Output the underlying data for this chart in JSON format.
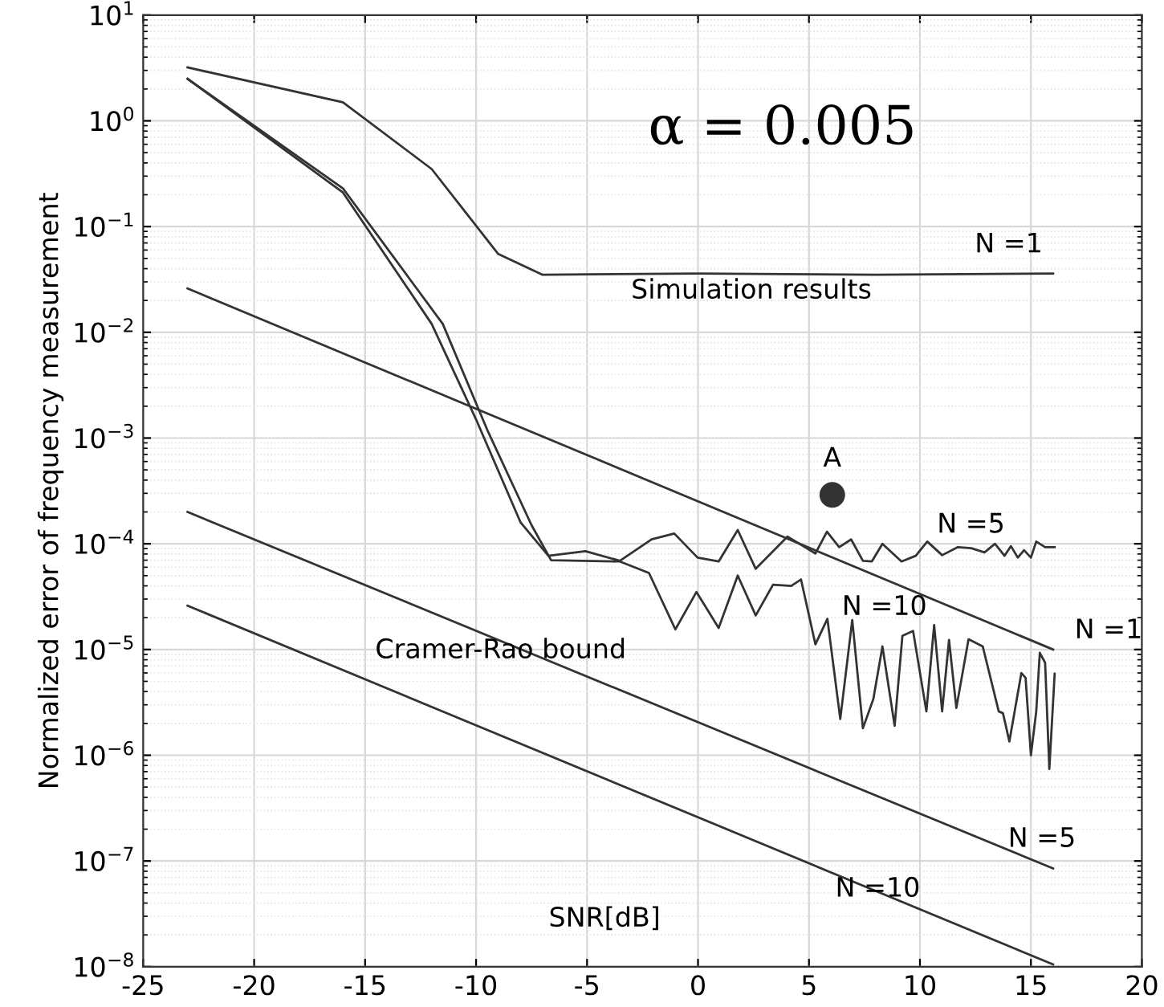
{
  "chart_data": {
    "type": "line",
    "ylabel": "Normalized error of frequency measurement",
    "log": "y",
    "grid": true,
    "line_style": "solid",
    "xlim": [
      -25,
      20
    ],
    "xticks": [
      -25,
      -20,
      -15,
      -10,
      -5,
      0,
      5,
      10,
      15,
      20
    ],
    "ylim": [
      1e-08,
      10
    ],
    "yticks": [
      {
        "value": 1e-08,
        "label": "10$^{−8}$"
      },
      {
        "value": 1e-07,
        "label": "10$^{−7}$"
      },
      {
        "value": 1e-06,
        "label": "10$^{−6}$"
      },
      {
        "value": 1e-05,
        "label": "10$^{−5}$"
      },
      {
        "value": 0.0001,
        "label": "10$^{−4}$"
      },
      {
        "value": 0.001,
        "label": "10$^{−3}$"
      },
      {
        "value": 0.01,
        "label": "10$^{−2}$"
      },
      {
        "value": 0.1,
        "label": "10$^{−1}$"
      },
      {
        "value": 1,
        "label": "10$^{0}$"
      },
      {
        "value": 10,
        "label": "10$^{1}$"
      }
    ],
    "series": [
      {
        "name": "N =1",
        "color": "#333333",
        "x": [
          -23,
          -16,
          -12,
          -9,
          -7,
          0,
          8,
          16
        ],
        "values": [
          3.2,
          1.5,
          0.35,
          0.055,
          0.035,
          0.036,
          0.035,
          0.036
        ]
      },
      {
        "name": "N =5",
        "color": "#333333",
        "x": [
          -23,
          -16,
          -12,
          -10,
          -8,
          -6.74,
          -5.07,
          -3.52,
          -2.09,
          -1.07,
          -0.02,
          0.93,
          1.79,
          2.6,
          4.03,
          5.29,
          5.81,
          6.36,
          6.9,
          7.43,
          7.83,
          8.31,
          9.17,
          9.81,
          10.33,
          11.0,
          11.71,
          12.31,
          12.91,
          13.38,
          13.81,
          14.1,
          14.41,
          14.69,
          15.0,
          15.24,
          15.64,
          16.07
        ],
        "values": [
          2.5,
          0.21,
          0.012,
          0.0015,
          0.00016,
          7.7e-05,
          8.5e-05,
          6.9e-05,
          0.00011,
          0.000125,
          7.4e-05,
          6.8e-05,
          0.000135,
          5.8e-05,
          0.000117,
          8.1e-05,
          0.00013,
          9.3e-05,
          0.00011,
          6.9e-05,
          6.8e-05,
          0.0001,
          6.8e-05,
          7.7e-05,
          0.000105,
          7.8e-05,
          9.3e-05,
          9.1e-05,
          8.3e-05,
          0.0001,
          7.7e-05,
          9.5e-05,
          7.4e-05,
          8.7e-05,
          7.4e-05,
          0.000105,
          9.3e-05,
          9.3e-05
        ]
      },
      {
        "name": "N =10",
        "color": "#333333",
        "x": [
          -23,
          -16,
          -11.5,
          -9.5,
          -7.5,
          -6.62,
          -3.52,
          -2.21,
          -1.02,
          -0.07,
          0.93,
          1.79,
          2.6,
          3.38,
          4.2,
          4.64,
          5.29,
          5.83,
          6.41,
          6.95,
          7.43,
          7.9,
          8.31,
          8.86,
          9.21,
          9.69,
          10.29,
          10.64,
          11.0,
          11.31,
          11.64,
          12.19,
          12.83,
          13.55,
          13.74,
          14.03,
          14.57,
          14.76,
          15.0,
          15.24,
          15.4,
          15.64,
          15.83,
          16.07
        ],
        "values": [
          2.5,
          0.23,
          0.012,
          0.0012,
          0.00015,
          7e-05,
          6.8e-05,
          5.3e-05,
          1.55e-05,
          3.5e-05,
          1.6e-05,
          5e-05,
          2.1e-05,
          4.1e-05,
          4e-05,
          4.6e-05,
          1.12e-05,
          1.95e-05,
          2.2e-06,
          1.9e-05,
          1.8e-06,
          3.4e-06,
          1.07e-05,
          1.9e-06,
          1.35e-05,
          1.5e-05,
          2.6e-06,
          1.7e-05,
          2.6e-06,
          1.23e-05,
          2.8e-06,
          1.25e-05,
          1.07e-05,
          2.6e-06,
          2.5e-06,
          1.35e-06,
          6e-06,
          5.4e-06,
          1e-06,
          2.6e-06,
          9.3e-06,
          7.5e-06,
          7.4e-07,
          5.9e-06
        ]
      },
      {
        "name": "N =1",
        "color": "#333333",
        "x": [
          -23,
          16
        ],
        "values": [
          0.026,
          1e-05
        ]
      },
      {
        "name": "N =5",
        "color": "#333333",
        "x": [
          -23,
          16
        ],
        "values": [
          0.0002,
          8.5e-08
        ]
      },
      {
        "name": "N =10",
        "color": "#333333",
        "x": [
          -23,
          16
        ],
        "values": [
          2.6e-05,
          1.05e-08
        ]
      },
      {
        "name": "A",
        "type": "scatter",
        "marker": "circle",
        "color": "#333333",
        "x": [
          6.05
        ],
        "values": [
          0.00029
        ]
      }
    ],
    "annotations": [
      "α = 0.005",
      "Simulation results",
      "Cramer-Rao bound",
      "SNR[dB]"
    ]
  }
}
